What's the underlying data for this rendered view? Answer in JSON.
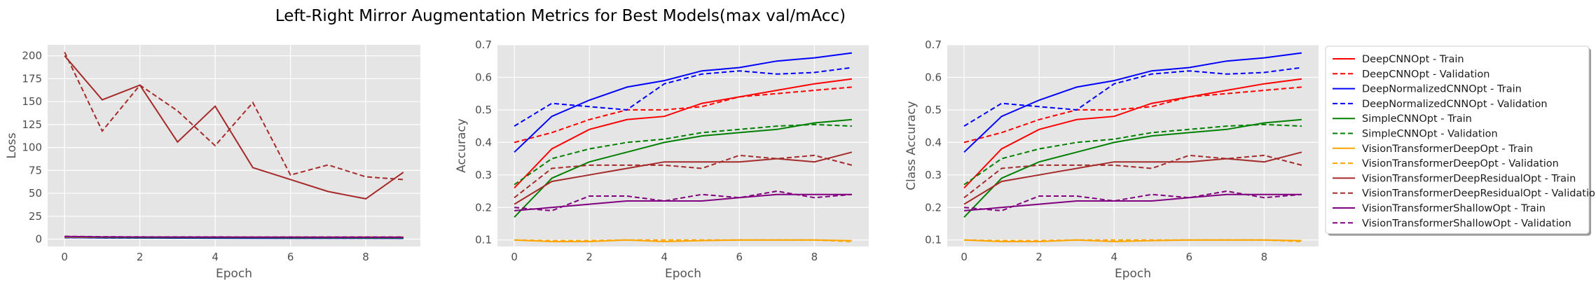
{
  "chart_data": {
    "title": "Left-Right Mirror Augmentation Metrics for Best Models(max val/mAcc)",
    "type": "line",
    "x": [
      0,
      1,
      2,
      3,
      4,
      5,
      6,
      7,
      8,
      9
    ],
    "xlabel": "Epoch",
    "xticks": [
      0,
      2,
      4,
      6,
      8
    ],
    "grid": true,
    "legend_position": "right",
    "series_styles": [
      {
        "name": "DeepCNNOpt - Train",
        "color": "#ff0000",
        "dash": "solid"
      },
      {
        "name": "DeepCNNOpt - Validation",
        "color": "#ff0000",
        "dash": "dashed"
      },
      {
        "name": "DeepNormalizedCNNOpt - Train",
        "color": "#0000ff",
        "dash": "solid"
      },
      {
        "name": "DeepNormalizedCNNOpt - Validation",
        "color": "#0000ff",
        "dash": "dashed"
      },
      {
        "name": "SimpleCNNOpt - Train",
        "color": "#008000",
        "dash": "solid"
      },
      {
        "name": "SimpleCNNOpt - Validation",
        "color": "#008000",
        "dash": "dashed"
      },
      {
        "name": "VisionTransformerDeepOpt - Train",
        "color": "#ffa500",
        "dash": "solid"
      },
      {
        "name": "VisionTransformerDeepOpt - Validation",
        "color": "#ffa500",
        "dash": "dashed"
      },
      {
        "name": "VisionTransformerDeepResidualOpt - Train",
        "color": "#a52a2a",
        "dash": "solid"
      },
      {
        "name": "VisionTransformerDeepResidualOpt - Validation",
        "color": "#a52a2a",
        "dash": "dashed"
      },
      {
        "name": "VisionTransformerShallowOpt - Train",
        "color": "#800080",
        "dash": "solid"
      },
      {
        "name": "VisionTransformerShallowOpt - Validation",
        "color": "#800080",
        "dash": "dashed"
      }
    ],
    "subplots": [
      {
        "ylabel": "Loss",
        "ylim": [
          -8,
          212
        ],
        "yticks": [
          0,
          25,
          50,
          75,
          100,
          125,
          150,
          175,
          200
        ],
        "series": [
          [
            2.2,
            1.9,
            1.8,
            1.7,
            1.6,
            1.5,
            1.4,
            1.3,
            1.25,
            1.2
          ],
          [
            2.0,
            1.9,
            1.8,
            1.7,
            1.6,
            1.5,
            1.45,
            1.4,
            1.35,
            1.3
          ],
          [
            1.8,
            1.5,
            1.3,
            1.2,
            1.1,
            1.0,
            1.0,
            0.9,
            0.9,
            0.85
          ],
          [
            1.6,
            1.4,
            1.35,
            1.4,
            1.2,
            1.15,
            1.1,
            1.1,
            1.1,
            1.05
          ],
          [
            2.3,
            1.9,
            1.8,
            1.7,
            1.6,
            1.55,
            1.5,
            1.45,
            1.4,
            1.4
          ],
          [
            2.1,
            1.8,
            1.7,
            1.65,
            1.6,
            1.55,
            1.5,
            1.5,
            1.5,
            1.5
          ],
          [
            2.4,
            2.3,
            2.3,
            2.3,
            2.3,
            2.3,
            2.3,
            2.3,
            2.3,
            2.3
          ],
          [
            2.3,
            2.3,
            2.3,
            2.3,
            2.3,
            2.3,
            2.3,
            2.3,
            2.3,
            2.3
          ],
          [
            200,
            152,
            168,
            106,
            145,
            78,
            65,
            52,
            44,
            73
          ],
          [
            204,
            118,
            168,
            140,
            102,
            149,
            70,
            81,
            68,
            65
          ],
          [
            2.9,
            2.4,
            2.3,
            2.2,
            2.2,
            2.1,
            2.1,
            2.0,
            2.0,
            2.0
          ],
          [
            3.0,
            2.6,
            2.5,
            2.4,
            2.4,
            2.3,
            2.3,
            2.3,
            2.3,
            2.3
          ]
        ]
      },
      {
        "ylabel": "Accuracy",
        "ylim": [
          0.08,
          0.7
        ],
        "yticks": [
          0.1,
          0.2,
          0.3,
          0.4,
          0.5,
          0.6,
          0.7
        ],
        "series": [
          [
            0.26,
            0.38,
            0.44,
            0.47,
            0.48,
            0.52,
            0.54,
            0.56,
            0.58,
            0.595
          ],
          [
            0.4,
            0.43,
            0.47,
            0.5,
            0.5,
            0.51,
            0.54,
            0.55,
            0.56,
            0.57
          ],
          [
            0.37,
            0.48,
            0.53,
            0.57,
            0.59,
            0.62,
            0.63,
            0.65,
            0.66,
            0.675
          ],
          [
            0.45,
            0.52,
            0.51,
            0.5,
            0.58,
            0.61,
            0.62,
            0.61,
            0.615,
            0.63
          ],
          [
            0.17,
            0.29,
            0.34,
            0.37,
            0.4,
            0.42,
            0.43,
            0.44,
            0.46,
            0.47
          ],
          [
            0.27,
            0.35,
            0.38,
            0.4,
            0.41,
            0.43,
            0.44,
            0.45,
            0.455,
            0.45
          ],
          [
            0.1,
            0.095,
            0.095,
            0.1,
            0.095,
            0.098,
            0.1,
            0.1,
            0.1,
            0.098
          ],
          [
            0.1,
            0.098,
            0.098,
            0.1,
            0.1,
            0.1,
            0.1,
            0.1,
            0.1,
            0.095
          ],
          [
            0.21,
            0.28,
            0.3,
            0.32,
            0.34,
            0.34,
            0.34,
            0.35,
            0.34,
            0.37
          ],
          [
            0.23,
            0.32,
            0.33,
            0.33,
            0.33,
            0.32,
            0.36,
            0.35,
            0.36,
            0.33
          ],
          [
            0.19,
            0.2,
            0.21,
            0.22,
            0.22,
            0.22,
            0.23,
            0.24,
            0.24,
            0.24
          ],
          [
            0.2,
            0.19,
            0.235,
            0.235,
            0.22,
            0.24,
            0.23,
            0.25,
            0.23,
            0.24
          ]
        ]
      },
      {
        "ylabel": "Class Accuracy",
        "ylim": [
          0.08,
          0.7
        ],
        "yticks": [
          0.1,
          0.2,
          0.3,
          0.4,
          0.5,
          0.6,
          0.7
        ],
        "series": [
          [
            0.26,
            0.38,
            0.44,
            0.47,
            0.48,
            0.52,
            0.54,
            0.56,
            0.58,
            0.595
          ],
          [
            0.4,
            0.43,
            0.47,
            0.5,
            0.5,
            0.51,
            0.54,
            0.55,
            0.56,
            0.57
          ],
          [
            0.37,
            0.48,
            0.53,
            0.57,
            0.59,
            0.62,
            0.63,
            0.65,
            0.66,
            0.675
          ],
          [
            0.45,
            0.52,
            0.51,
            0.5,
            0.58,
            0.61,
            0.62,
            0.61,
            0.615,
            0.63
          ],
          [
            0.17,
            0.29,
            0.34,
            0.37,
            0.4,
            0.42,
            0.43,
            0.44,
            0.46,
            0.47
          ],
          [
            0.27,
            0.35,
            0.38,
            0.4,
            0.41,
            0.43,
            0.44,
            0.45,
            0.455,
            0.45
          ],
          [
            0.1,
            0.095,
            0.095,
            0.1,
            0.095,
            0.098,
            0.1,
            0.1,
            0.1,
            0.098
          ],
          [
            0.1,
            0.098,
            0.098,
            0.1,
            0.1,
            0.1,
            0.1,
            0.1,
            0.1,
            0.095
          ],
          [
            0.21,
            0.28,
            0.3,
            0.32,
            0.34,
            0.34,
            0.34,
            0.35,
            0.34,
            0.37
          ],
          [
            0.23,
            0.32,
            0.33,
            0.33,
            0.33,
            0.32,
            0.36,
            0.35,
            0.36,
            0.33
          ],
          [
            0.19,
            0.2,
            0.21,
            0.22,
            0.22,
            0.22,
            0.23,
            0.24,
            0.24,
            0.24
          ],
          [
            0.2,
            0.19,
            0.235,
            0.235,
            0.22,
            0.24,
            0.23,
            0.25,
            0.23,
            0.24
          ]
        ]
      }
    ]
  }
}
